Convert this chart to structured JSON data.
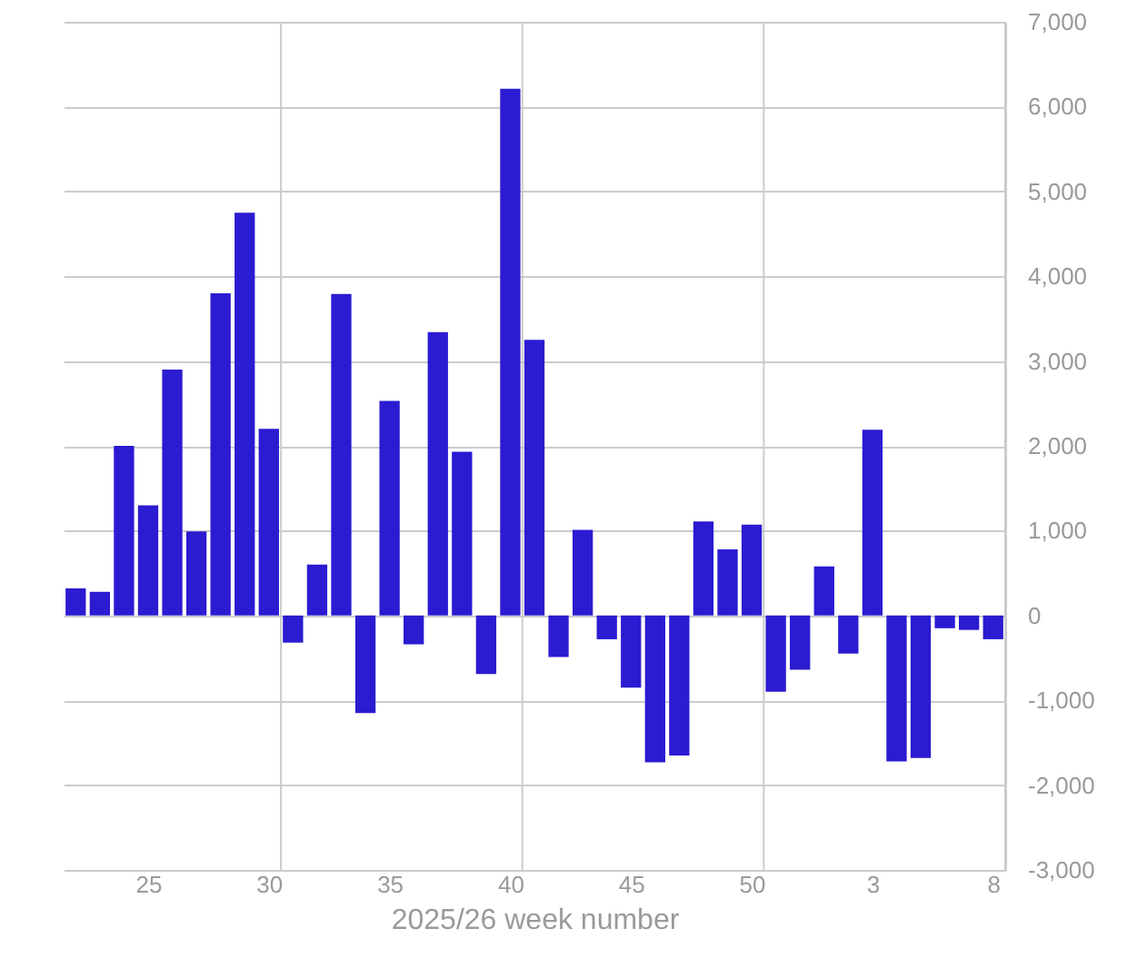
{
  "chart_data": {
    "type": "bar",
    "xlabel": "2025/26 week number",
    "categories": [
      null,
      null,
      null,
      "25",
      null,
      null,
      null,
      null,
      "30",
      null,
      null,
      null,
      null,
      "35",
      null,
      null,
      null,
      null,
      "40",
      null,
      null,
      null,
      null,
      "45",
      null,
      null,
      null,
      null,
      "50",
      null,
      null,
      null,
      null,
      "3",
      null,
      null,
      null,
      null,
      "8"
    ],
    "values": [
      320,
      280,
      2000,
      1300,
      2900,
      990,
      3800,
      4750,
      2200,
      -320,
      600,
      3790,
      -1150,
      2530,
      -340,
      3340,
      1930,
      -690,
      6210,
      3250,
      -490,
      1010,
      -280,
      -850,
      -1730,
      -1650,
      1110,
      780,
      1070,
      -900,
      -640,
      580,
      -450,
      2190,
      -1720,
      -1680,
      -150,
      -170,
      -280
    ],
    "color": "#2b1bd1",
    "ylim": [
      -3000,
      7000
    ],
    "yticks": [
      {
        "value": -3000,
        "label": "-3,000"
      },
      {
        "value": -2000,
        "label": "-2,000"
      },
      {
        "value": -1000,
        "label": "-1,000"
      },
      0,
      {
        "value": 1000,
        "label": "1,000"
      },
      {
        "value": 2000,
        "label": "2,000"
      },
      {
        "value": 3000,
        "label": "3,000"
      },
      {
        "value": 4000,
        "label": "4,000"
      },
      {
        "value": 5000,
        "label": "5,000"
      },
      {
        "value": 6000,
        "label": "6,000"
      },
      {
        "value": 7000,
        "label": "7,000"
      }
    ],
    "grid": true
  }
}
